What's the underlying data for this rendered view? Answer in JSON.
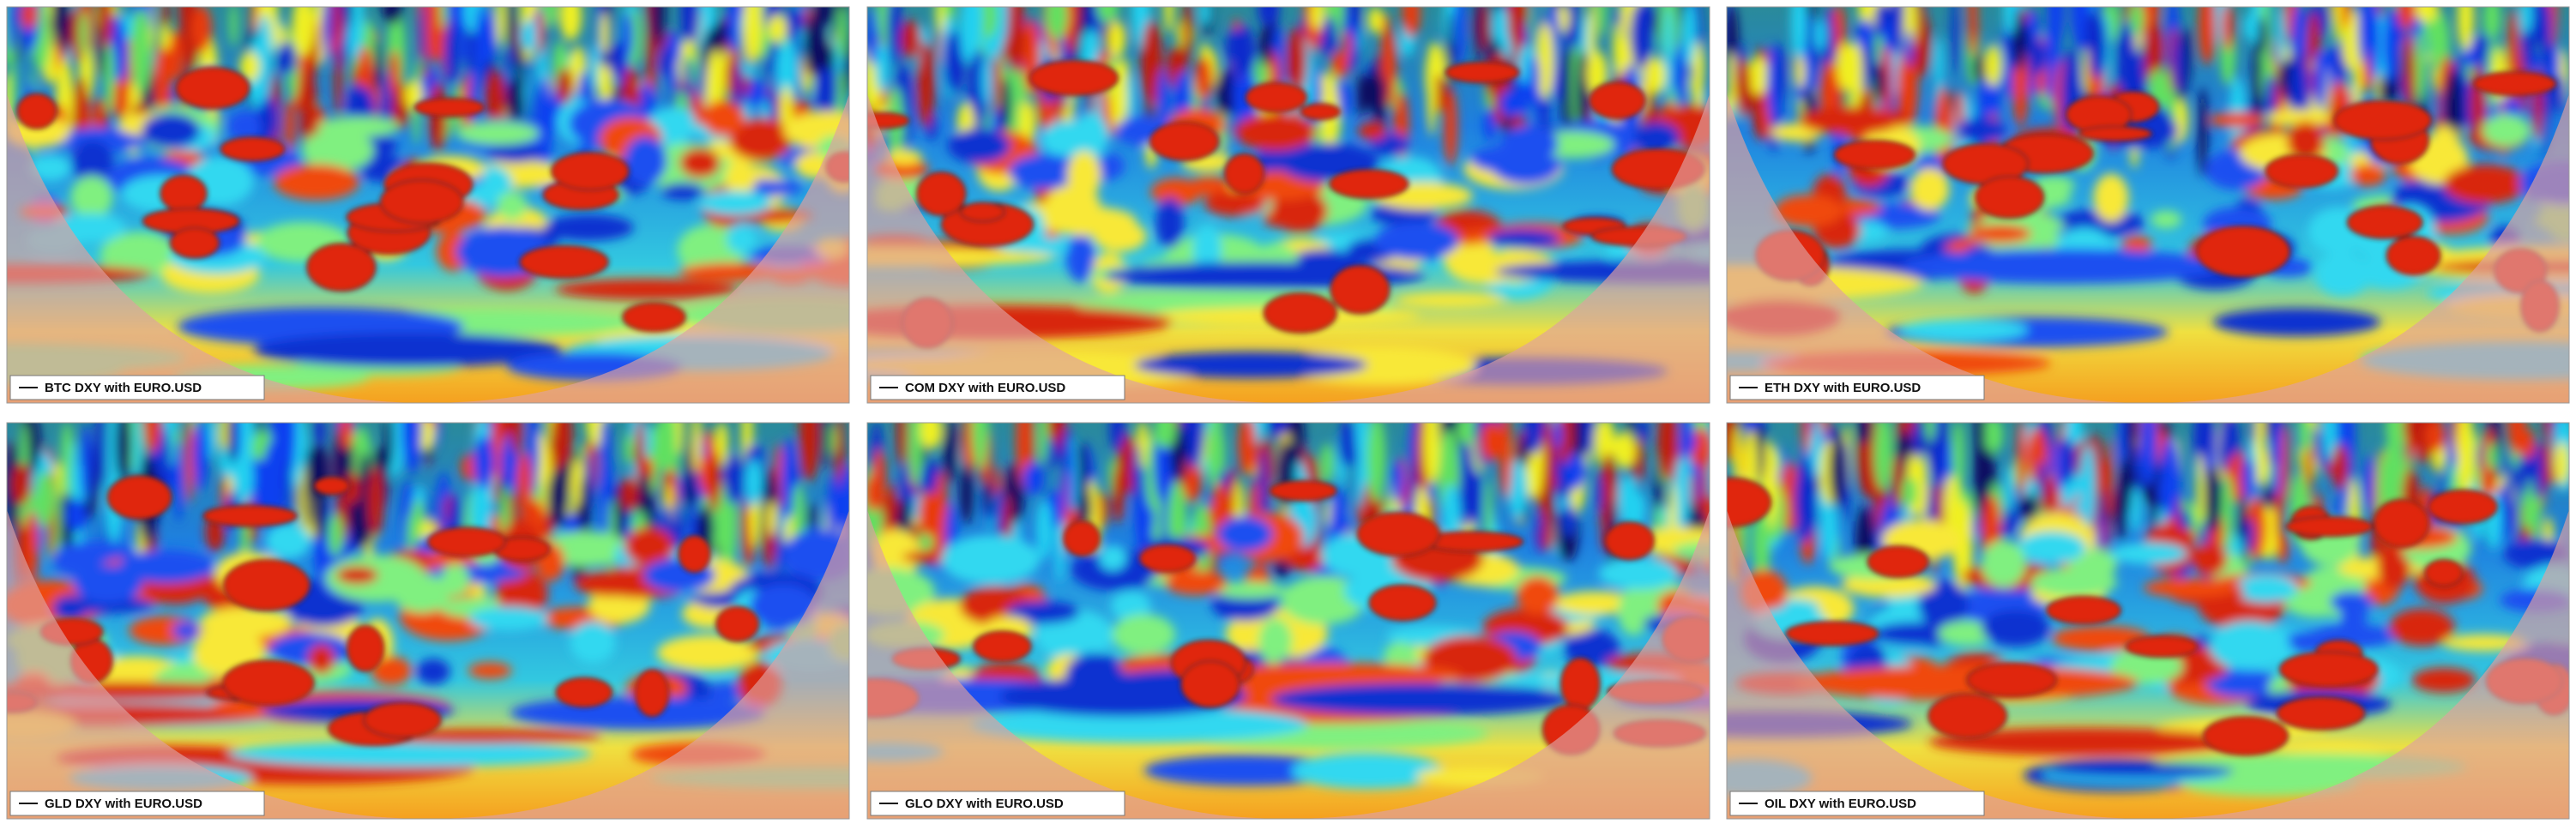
{
  "panels": [
    {
      "label": "BTC DXY with EURO.USD"
    },
    {
      "label": "COM DXY with EURO.USD"
    },
    {
      "label": "ETH DXY with EURO.USD"
    },
    {
      "label": "GLD DXY with EURO.USD"
    },
    {
      "label": "GLO DXY with EURO.USD"
    },
    {
      "label": "OIL DXY with EURO.USD"
    }
  ]
}
